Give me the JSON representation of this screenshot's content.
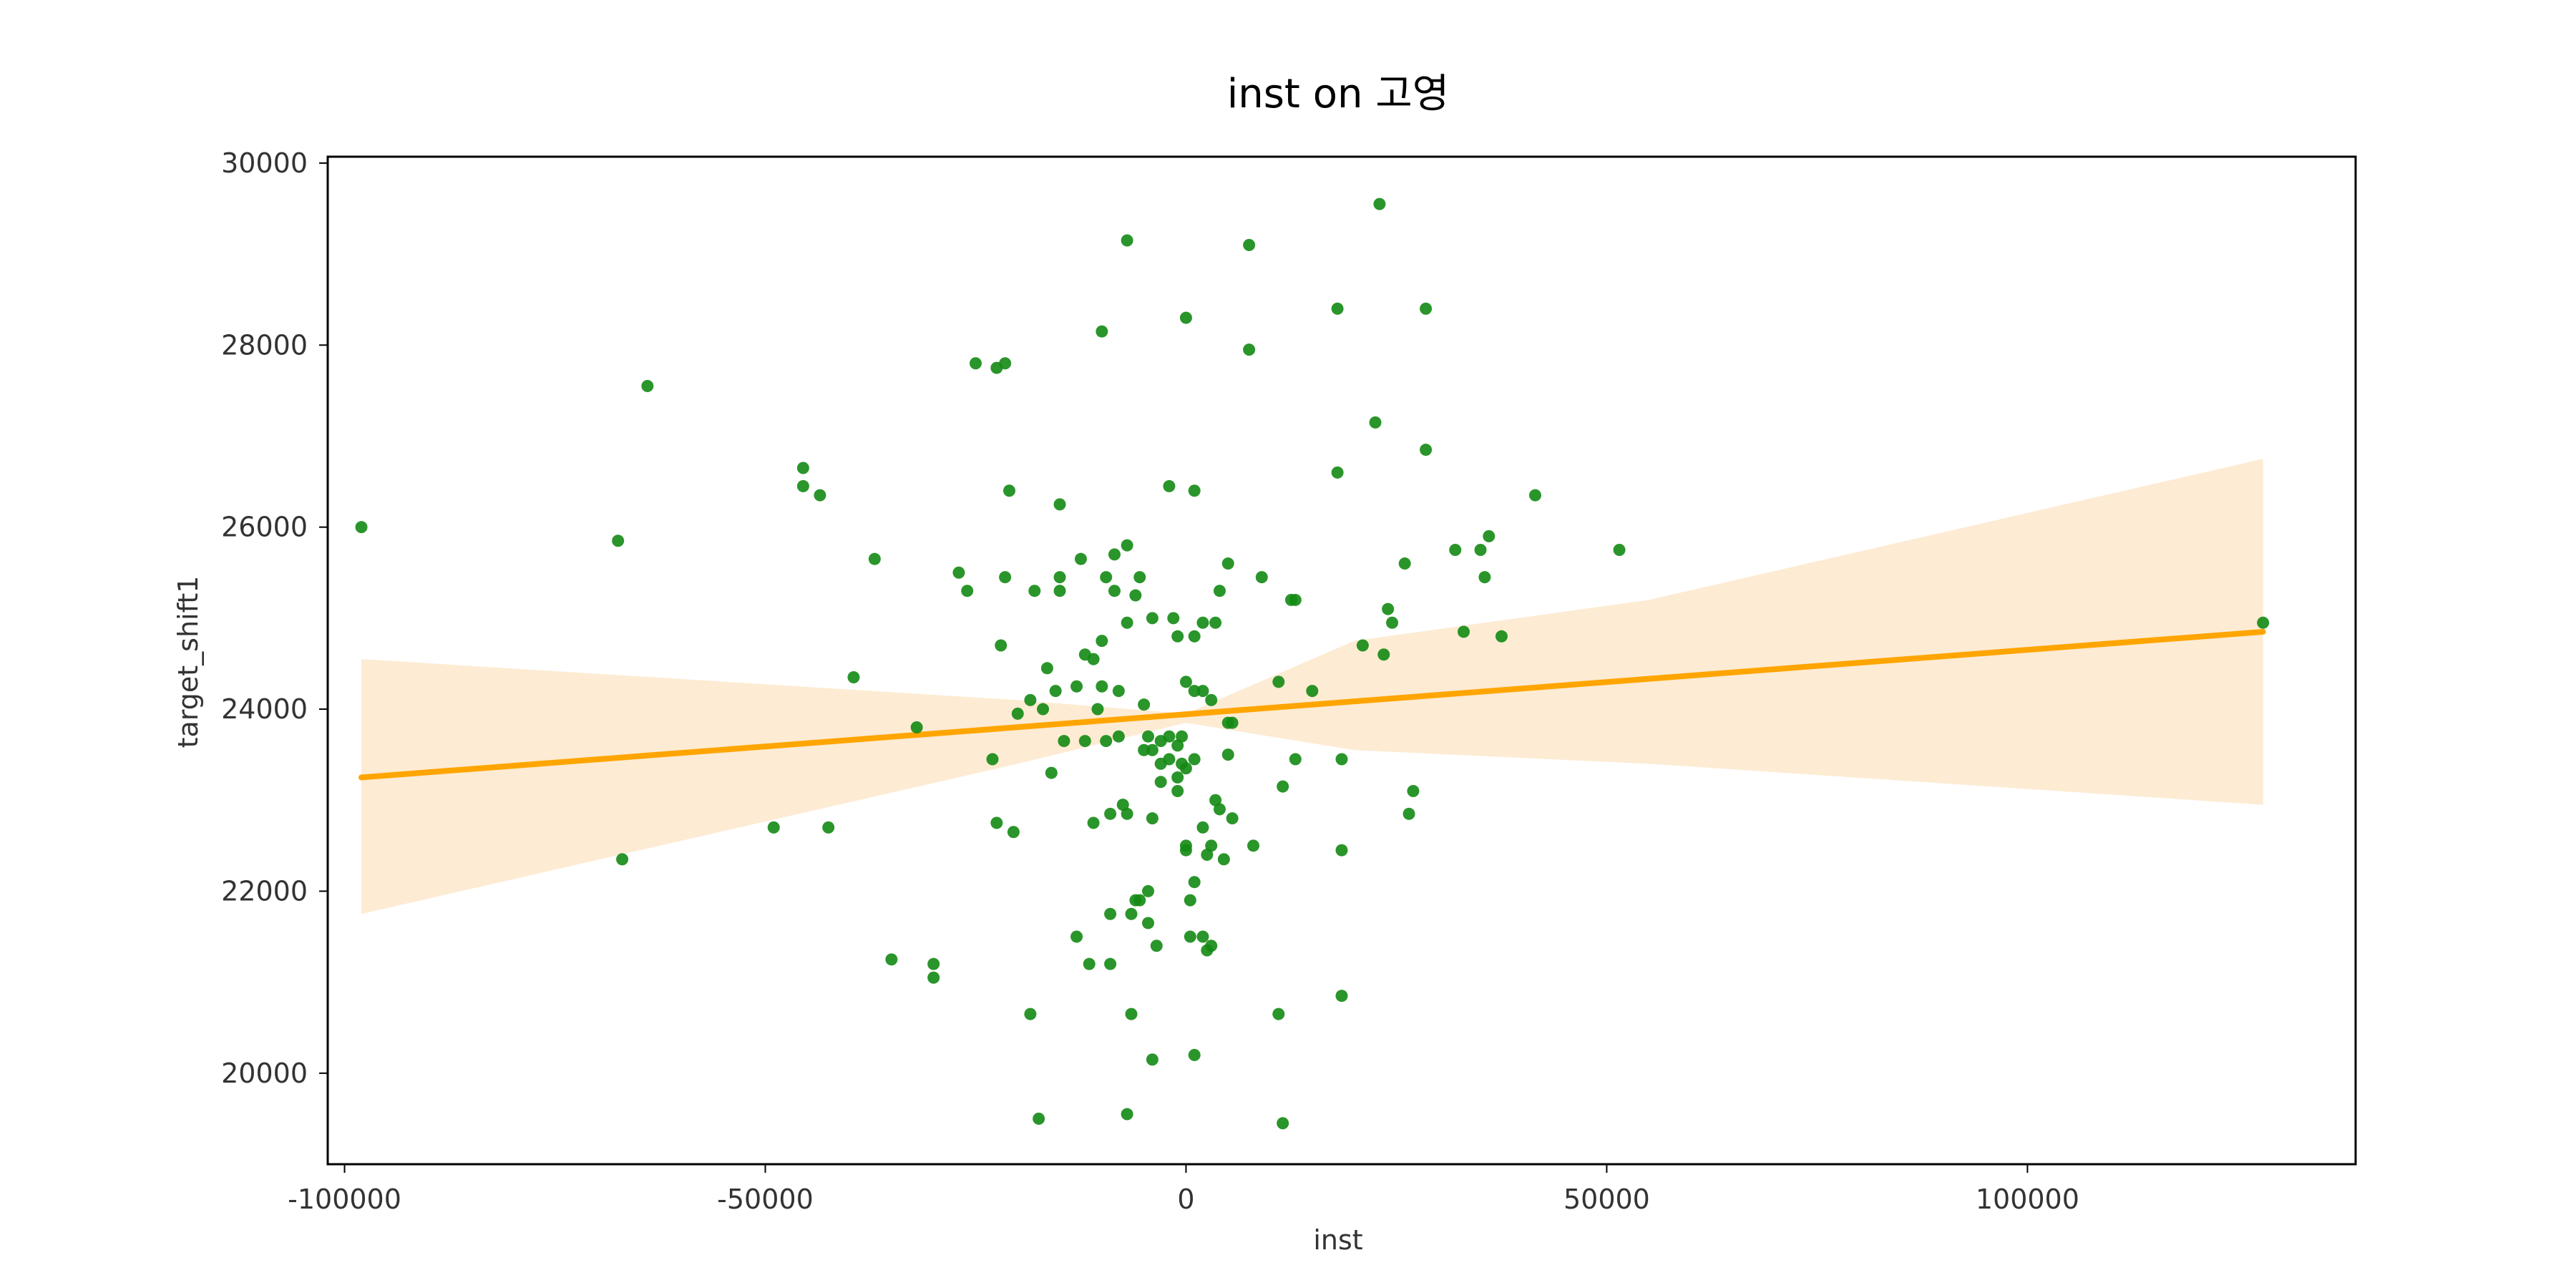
{
  "chart_data": {
    "type": "scatter",
    "title": "inst on 고영",
    "xlabel": "inst",
    "ylabel": "target_shift1",
    "xlim": [
      -102000,
      139000
    ],
    "ylim": [
      19000,
      30070
    ],
    "xticks": [
      -100000,
      -50000,
      0,
      50000,
      100000
    ],
    "yticks": [
      20000,
      22000,
      24000,
      26000,
      28000,
      30000
    ],
    "grid": false,
    "colors": {
      "points": "#138a13",
      "line": "#ffa500",
      "band": "#fdebd3",
      "frame": "#000000"
    },
    "series": [
      {
        "type": "scatter",
        "points": [
          [
            -98000,
            26000
          ],
          [
            -67500,
            25850
          ],
          [
            -64000,
            27550
          ],
          [
            -67000,
            22350
          ],
          [
            -45500,
            26650
          ],
          [
            -45500,
            26450
          ],
          [
            -43500,
            26350
          ],
          [
            -49000,
            22700
          ],
          [
            -42500,
            22700
          ],
          [
            -39500,
            24350
          ],
          [
            -37000,
            25650
          ],
          [
            -35000,
            21250
          ],
          [
            -32000,
            23800
          ],
          [
            -30000,
            21200
          ],
          [
            -30000,
            21050
          ],
          [
            -27000,
            25500
          ],
          [
            -26000,
            25300
          ],
          [
            -25000,
            27800
          ],
          [
            -22500,
            27750
          ],
          [
            -21500,
            27800
          ],
          [
            -22000,
            24700
          ],
          [
            -22500,
            22750
          ],
          [
            -21000,
            26400
          ],
          [
            -20500,
            22650
          ],
          [
            -21500,
            25450
          ],
          [
            -23000,
            23450
          ],
          [
            -20000,
            23950
          ],
          [
            -18500,
            20650
          ],
          [
            -18500,
            24100
          ],
          [
            -18000,
            25300
          ],
          [
            -17500,
            19500
          ],
          [
            -17000,
            24000
          ],
          [
            -16500,
            24450
          ],
          [
            -16000,
            23300
          ],
          [
            -15500,
            24200
          ],
          [
            -15000,
            26250
          ],
          [
            -15000,
            25450
          ],
          [
            -15000,
            25300
          ],
          [
            -14500,
            23650
          ],
          [
            -13000,
            21500
          ],
          [
            -13000,
            24250
          ],
          [
            -12500,
            25650
          ],
          [
            -12000,
            24600
          ],
          [
            -12000,
            23650
          ],
          [
            -11500,
            21200
          ],
          [
            -11000,
            24550
          ],
          [
            -11000,
            22750
          ],
          [
            -10500,
            24000
          ],
          [
            -10000,
            28150
          ],
          [
            -10000,
            24750
          ],
          [
            -10000,
            24250
          ],
          [
            -9500,
            25450
          ],
          [
            -9500,
            23650
          ],
          [
            -9000,
            22850
          ],
          [
            -9000,
            21750
          ],
          [
            -9000,
            21200
          ],
          [
            -8500,
            25700
          ],
          [
            -8500,
            25300
          ],
          [
            -8000,
            24200
          ],
          [
            -8000,
            23700
          ],
          [
            -7500,
            22950
          ],
          [
            -7000,
            29150
          ],
          [
            -7000,
            25800
          ],
          [
            -7000,
            24950
          ],
          [
            -7000,
            22850
          ],
          [
            -7000,
            19550
          ],
          [
            -6500,
            21750
          ],
          [
            -6500,
            20650
          ],
          [
            -6000,
            25250
          ],
          [
            -6000,
            21900
          ],
          [
            -5500,
            25450
          ],
          [
            -5500,
            21900
          ],
          [
            -5000,
            23550
          ],
          [
            -5000,
            24050
          ],
          [
            -4500,
            23700
          ],
          [
            -4500,
            22000
          ],
          [
            -4500,
            21650
          ],
          [
            -4000,
            25000
          ],
          [
            -4000,
            23550
          ],
          [
            -4000,
            22800
          ],
          [
            -4000,
            20150
          ],
          [
            -3500,
            21400
          ],
          [
            -3000,
            23650
          ],
          [
            -3000,
            23400
          ],
          [
            -3000,
            23200
          ],
          [
            -2000,
            26450
          ],
          [
            -2000,
            23450
          ],
          [
            -2000,
            23700
          ],
          [
            -1500,
            25000
          ],
          [
            -1000,
            24800
          ],
          [
            -1000,
            23600
          ],
          [
            -1000,
            23250
          ],
          [
            -1000,
            23100
          ],
          [
            -500,
            23700
          ],
          [
            -500,
            23400
          ],
          [
            0,
            28300
          ],
          [
            0,
            24300
          ],
          [
            0,
            23350
          ],
          [
            0,
            22450
          ],
          [
            0,
            22500
          ],
          [
            500,
            21900
          ],
          [
            500,
            21500
          ],
          [
            1000,
            26400
          ],
          [
            1000,
            24800
          ],
          [
            1000,
            24200
          ],
          [
            1000,
            23450
          ],
          [
            1000,
            22100
          ],
          [
            1000,
            20200
          ],
          [
            2000,
            24950
          ],
          [
            2000,
            24200
          ],
          [
            2000,
            22700
          ],
          [
            2000,
            21500
          ],
          [
            2500,
            22400
          ],
          [
            2500,
            21350
          ],
          [
            3000,
            24100
          ],
          [
            3000,
            22500
          ],
          [
            3000,
            21400
          ],
          [
            3500,
            24950
          ],
          [
            3500,
            23000
          ],
          [
            4000,
            25300
          ],
          [
            4000,
            22900
          ],
          [
            4500,
            22350
          ],
          [
            5000,
            25600
          ],
          [
            5000,
            23850
          ],
          [
            5000,
            23500
          ],
          [
            5500,
            23850
          ],
          [
            5500,
            22800
          ],
          [
            7500,
            29100
          ],
          [
            7500,
            27950
          ],
          [
            8000,
            22500
          ],
          [
            9000,
            25450
          ],
          [
            11000,
            24300
          ],
          [
            11000,
            20650
          ],
          [
            11500,
            23150
          ],
          [
            11500,
            19450
          ],
          [
            12500,
            25200
          ],
          [
            13000,
            25200
          ],
          [
            13000,
            23450
          ],
          [
            15000,
            24200
          ],
          [
            18000,
            28400
          ],
          [
            18000,
            26600
          ],
          [
            18500,
            23450
          ],
          [
            18500,
            22450
          ],
          [
            18500,
            20850
          ],
          [
            21000,
            24700
          ],
          [
            22500,
            27150
          ],
          [
            23000,
            29550
          ],
          [
            23500,
            24600
          ],
          [
            24000,
            25100
          ],
          [
            24500,
            24950
          ],
          [
            26000,
            25600
          ],
          [
            26500,
            22850
          ],
          [
            27000,
            23100
          ],
          [
            28500,
            28400
          ],
          [
            28500,
            26850
          ],
          [
            32000,
            25750
          ],
          [
            33000,
            24850
          ],
          [
            35000,
            25750
          ],
          [
            35500,
            25450
          ],
          [
            36000,
            25900
          ],
          [
            37500,
            24800
          ],
          [
            41500,
            26350
          ],
          [
            51500,
            25750
          ],
          [
            128000,
            24950
          ]
        ]
      },
      {
        "type": "line",
        "points": [
          [
            -98000,
            23250
          ],
          [
            128000,
            24850
          ]
        ]
      },
      {
        "type": "area",
        "upper": [
          [
            -98000,
            24550
          ],
          [
            -20000,
            24100
          ],
          [
            0,
            23950
          ],
          [
            20000,
            24750
          ],
          [
            55000,
            25200
          ],
          [
            128000,
            26750
          ]
        ],
        "lower": [
          [
            -98000,
            21750
          ],
          [
            -20000,
            23400
          ],
          [
            0,
            23850
          ],
          [
            20000,
            23550
          ],
          [
            55000,
            23400
          ],
          [
            128000,
            22950
          ]
        ]
      }
    ]
  }
}
